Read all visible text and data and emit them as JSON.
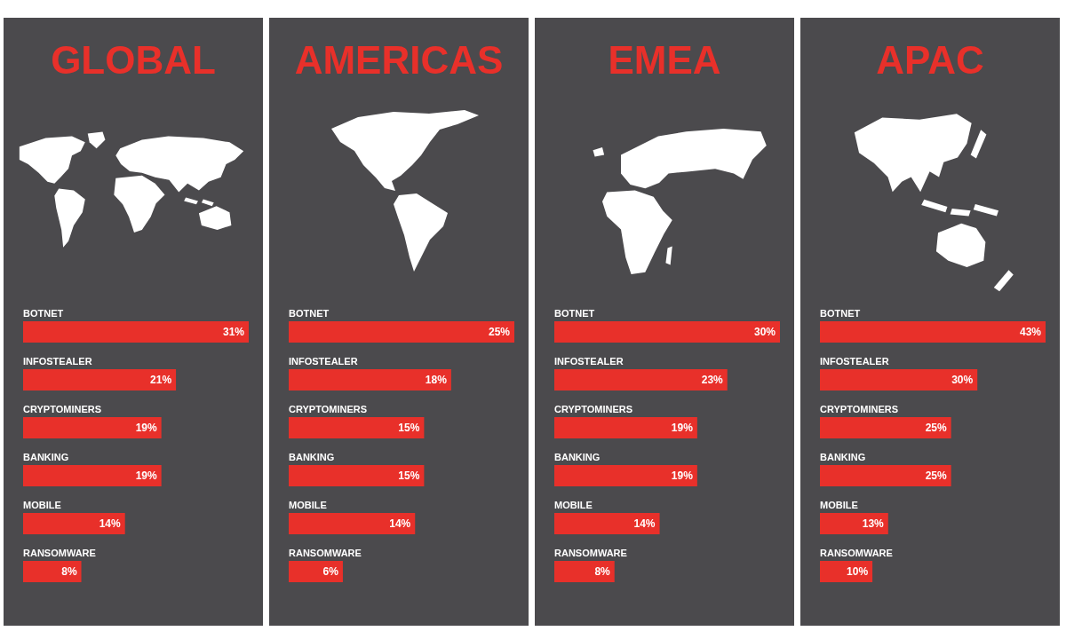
{
  "chart_data": [
    {
      "type": "bar",
      "orientation": "horizontal",
      "title": "GLOBAL",
      "categories": [
        "BOTNET",
        "INFOSTEALER",
        "CRYPTOMINERS",
        "BANKING",
        "MOBILE",
        "RANSOMWARE"
      ],
      "values": [
        31,
        21,
        19,
        19,
        14,
        8
      ],
      "value_labels": [
        "31%",
        "21%",
        "19%",
        "19%",
        "14%",
        "8%"
      ],
      "color": "#e8302a"
    },
    {
      "type": "bar",
      "orientation": "horizontal",
      "title": "AMERICAS",
      "categories": [
        "BOTNET",
        "INFOSTEALER",
        "CRYPTOMINERS",
        "BANKING",
        "MOBILE",
        "RANSOMWARE"
      ],
      "values": [
        25,
        18,
        15,
        15,
        14,
        6
      ],
      "value_labels": [
        "25%",
        "18%",
        "15%",
        "15%",
        "14%",
        "6%"
      ],
      "color": "#e8302a"
    },
    {
      "type": "bar",
      "orientation": "horizontal",
      "title": "EMEA",
      "categories": [
        "BOTNET",
        "INFOSTEALER",
        "CRYPTOMINERS",
        "BANKING",
        "MOBILE",
        "RANSOMWARE"
      ],
      "values": [
        30,
        23,
        19,
        19,
        14,
        8
      ],
      "value_labels": [
        "30%",
        "23%",
        "19%",
        "19%",
        "14%",
        "8%"
      ],
      "color": "#e8302a"
    },
    {
      "type": "bar",
      "orientation": "horizontal",
      "title": "APAC",
      "categories": [
        "BOTNET",
        "INFOSTEALER",
        "CRYPTOMINERS",
        "BANKING",
        "MOBILE",
        "RANSOMWARE"
      ],
      "values": [
        43,
        30,
        25,
        25,
        13,
        10
      ],
      "value_labels": [
        "43%",
        "30%",
        "25%",
        "25%",
        "13%",
        "10%"
      ],
      "color": "#e8302a"
    }
  ]
}
